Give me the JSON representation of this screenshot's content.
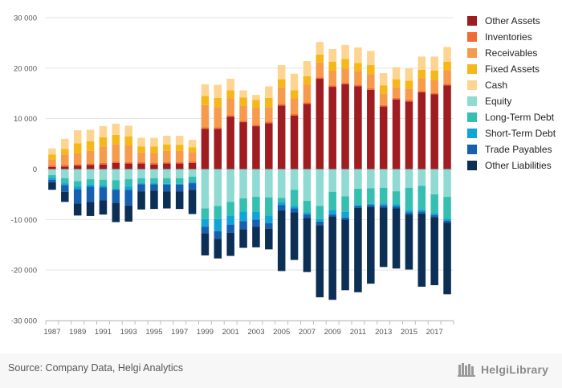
{
  "source": "Source: Company Data, Helgi Analytics",
  "logo_text": "HelgiLibrary",
  "chart_data": {
    "type": "bar",
    "stacked": true,
    "years": [
      1987,
      1988,
      1989,
      1990,
      1991,
      1992,
      1993,
      1994,
      1995,
      1996,
      1997,
      1998,
      1999,
      2000,
      2001,
      2002,
      2003,
      2004,
      2005,
      2006,
      2007,
      2008,
      2009,
      2010,
      2011,
      2012,
      2013,
      2014,
      2015,
      2016,
      2017,
      2018
    ],
    "x_tick_labels": [
      "1987",
      "1989",
      "1991",
      "1993",
      "1995",
      "1997",
      "1999",
      "2001",
      "2003",
      "2005",
      "2007",
      "2009",
      "2011",
      "2013",
      "2015",
      "2017"
    ],
    "y_tick_labels": [
      "30 000",
      "20 000",
      "10 000",
      "0",
      "-10 000",
      "-20 000",
      "-30 000"
    ],
    "ylim": [
      -30000,
      30000
    ],
    "legend_position": "right",
    "assets": [
      {
        "name": "Other Assets",
        "color": "#9f1d20",
        "values": [
          400,
          500,
          700,
          800,
          900,
          1200,
          1100,
          1100,
          900,
          1100,
          1100,
          1200,
          8000,
          8000,
          10400,
          9300,
          8500,
          9100,
          12600,
          10600,
          12900,
          17900,
          16300,
          16800,
          16400,
          15700,
          12400,
          13800,
          13400,
          15200,
          14800,
          16600
        ]
      },
      {
        "name": "Inventories",
        "color": "#f26b35",
        "values": [
          300,
          300,
          300,
          300,
          300,
          300,
          300,
          300,
          300,
          300,
          300,
          300,
          300,
          300,
          300,
          300,
          300,
          300,
          300,
          300,
          300,
          300,
          300,
          300,
          300,
          300,
          300,
          300,
          300,
          300,
          300,
          300
        ]
      },
      {
        "name": "Receivables",
        "color": "#f69a4c",
        "values": [
          1200,
          2100,
          2100,
          2500,
          3300,
          3400,
          3300,
          1900,
          2000,
          2200,
          2200,
          1900,
          4400,
          4000,
          3300,
          3000,
          3300,
          2900,
          3300,
          3100,
          3500,
          2900,
          2900,
          2800,
          2700,
          2800,
          2200,
          2100,
          2200,
          2500,
          2500,
          2600
        ]
      },
      {
        "name": "Fixed Assets",
        "color": "#f5b71a",
        "values": [
          1000,
          1100,
          2000,
          1900,
          1800,
          1900,
          1800,
          1200,
          1300,
          1300,
          1200,
          900,
          1800,
          1800,
          1600,
          1600,
          1600,
          1800,
          1600,
          1600,
          1700,
          1600,
          1800,
          1900,
          1600,
          1800,
          1700,
          1600,
          1600,
          1700,
          1900,
          1800
        ]
      },
      {
        "name": "Cash",
        "color": "#fdd591",
        "values": [
          1200,
          2000,
          2600,
          2300,
          2200,
          2200,
          2100,
          1700,
          1700,
          1700,
          1800,
          1500,
          2300,
          2600,
          2300,
          1400,
          1000,
          2300,
          2800,
          3300,
          3000,
          2500,
          2500,
          2800,
          3100,
          2800,
          2400,
          2400,
          2500,
          2600,
          2800,
          2900
        ]
      },
      {
        "name": "Equity",
        "color": "#8fdad3",
        "values": [
          -1200,
          -1800,
          -2400,
          -2000,
          -2100,
          -2200,
          -2000,
          -1800,
          -1800,
          -1800,
          -1800,
          -1500,
          -7800,
          -7300,
          -6500,
          -5800,
          -5500,
          -5600,
          -5700,
          -4100,
          -6300,
          -7300,
          -4500,
          -5400,
          -3900,
          -3800,
          -3700,
          -4400,
          -3700,
          -3300,
          -5000,
          -5500
        ]
      },
      {
        "name": "Long-Term Debt",
        "color": "#35bfb0",
        "values": [
          -500,
          -1000,
          -1100,
          -1100,
          -1100,
          -1700,
          -1500,
          -1000,
          -1000,
          -1100,
          -1100,
          -1000,
          -2100,
          -2600,
          -2700,
          -2600,
          -3000,
          -3600,
          -800,
          -3200,
          -2300,
          -2600,
          -3600,
          -3100,
          -3200,
          -3100,
          -3100,
          -2600,
          -4500,
          -4700,
          -3700,
          -4300
        ]
      },
      {
        "name": "Short-Term Debt",
        "color": "#10a5d6",
        "values": [
          -400,
          -400,
          -500,
          -400,
          -400,
          -200,
          -600,
          -200,
          -200,
          -200,
          -200,
          -300,
          -1500,
          -2400,
          -1800,
          -1900,
          -1500,
          -1500,
          -600,
          -500,
          -400,
          -500,
          -900,
          -1100,
          -200,
          -200,
          -400,
          -400,
          -400,
          -400,
          -400,
          -400
        ]
      },
      {
        "name": "Trade Payables",
        "color": "#1560b0",
        "values": [
          -500,
          -1300,
          -2800,
          -3000,
          -2600,
          -2600,
          -3100,
          -1400,
          -1300,
          -1300,
          -1300,
          -1300,
          -1300,
          -1500,
          -1600,
          -1600,
          -1400,
          -1100,
          -1100,
          -800,
          -700,
          -700,
          -400,
          -400,
          -400,
          -400,
          -400,
          -400,
          -400,
          -400,
          -400,
          -400
        ]
      },
      {
        "name": "Other Liabilities",
        "color": "#0c2f55",
        "values": [
          -1500,
          -2000,
          -2400,
          -2800,
          -2800,
          -3800,
          -3200,
          -3600,
          -3600,
          -3400,
          -3500,
          -4800,
          -4400,
          -3900,
          -4600,
          -3700,
          -4100,
          -4100,
          -12000,
          -9400,
          -10700,
          -14300,
          -16500,
          -14000,
          -16700,
          -15200,
          -11800,
          -11900,
          -10900,
          -14500,
          -13500,
          -14200
        ]
      }
    ],
    "legend": [
      "Other Assets",
      "Inventories",
      "Receivables",
      "Fixed Assets",
      "Cash",
      "Equity",
      "Long-Term Debt",
      "Short-Term Debt",
      "Trade Payables",
      "Other Liabilities"
    ]
  }
}
